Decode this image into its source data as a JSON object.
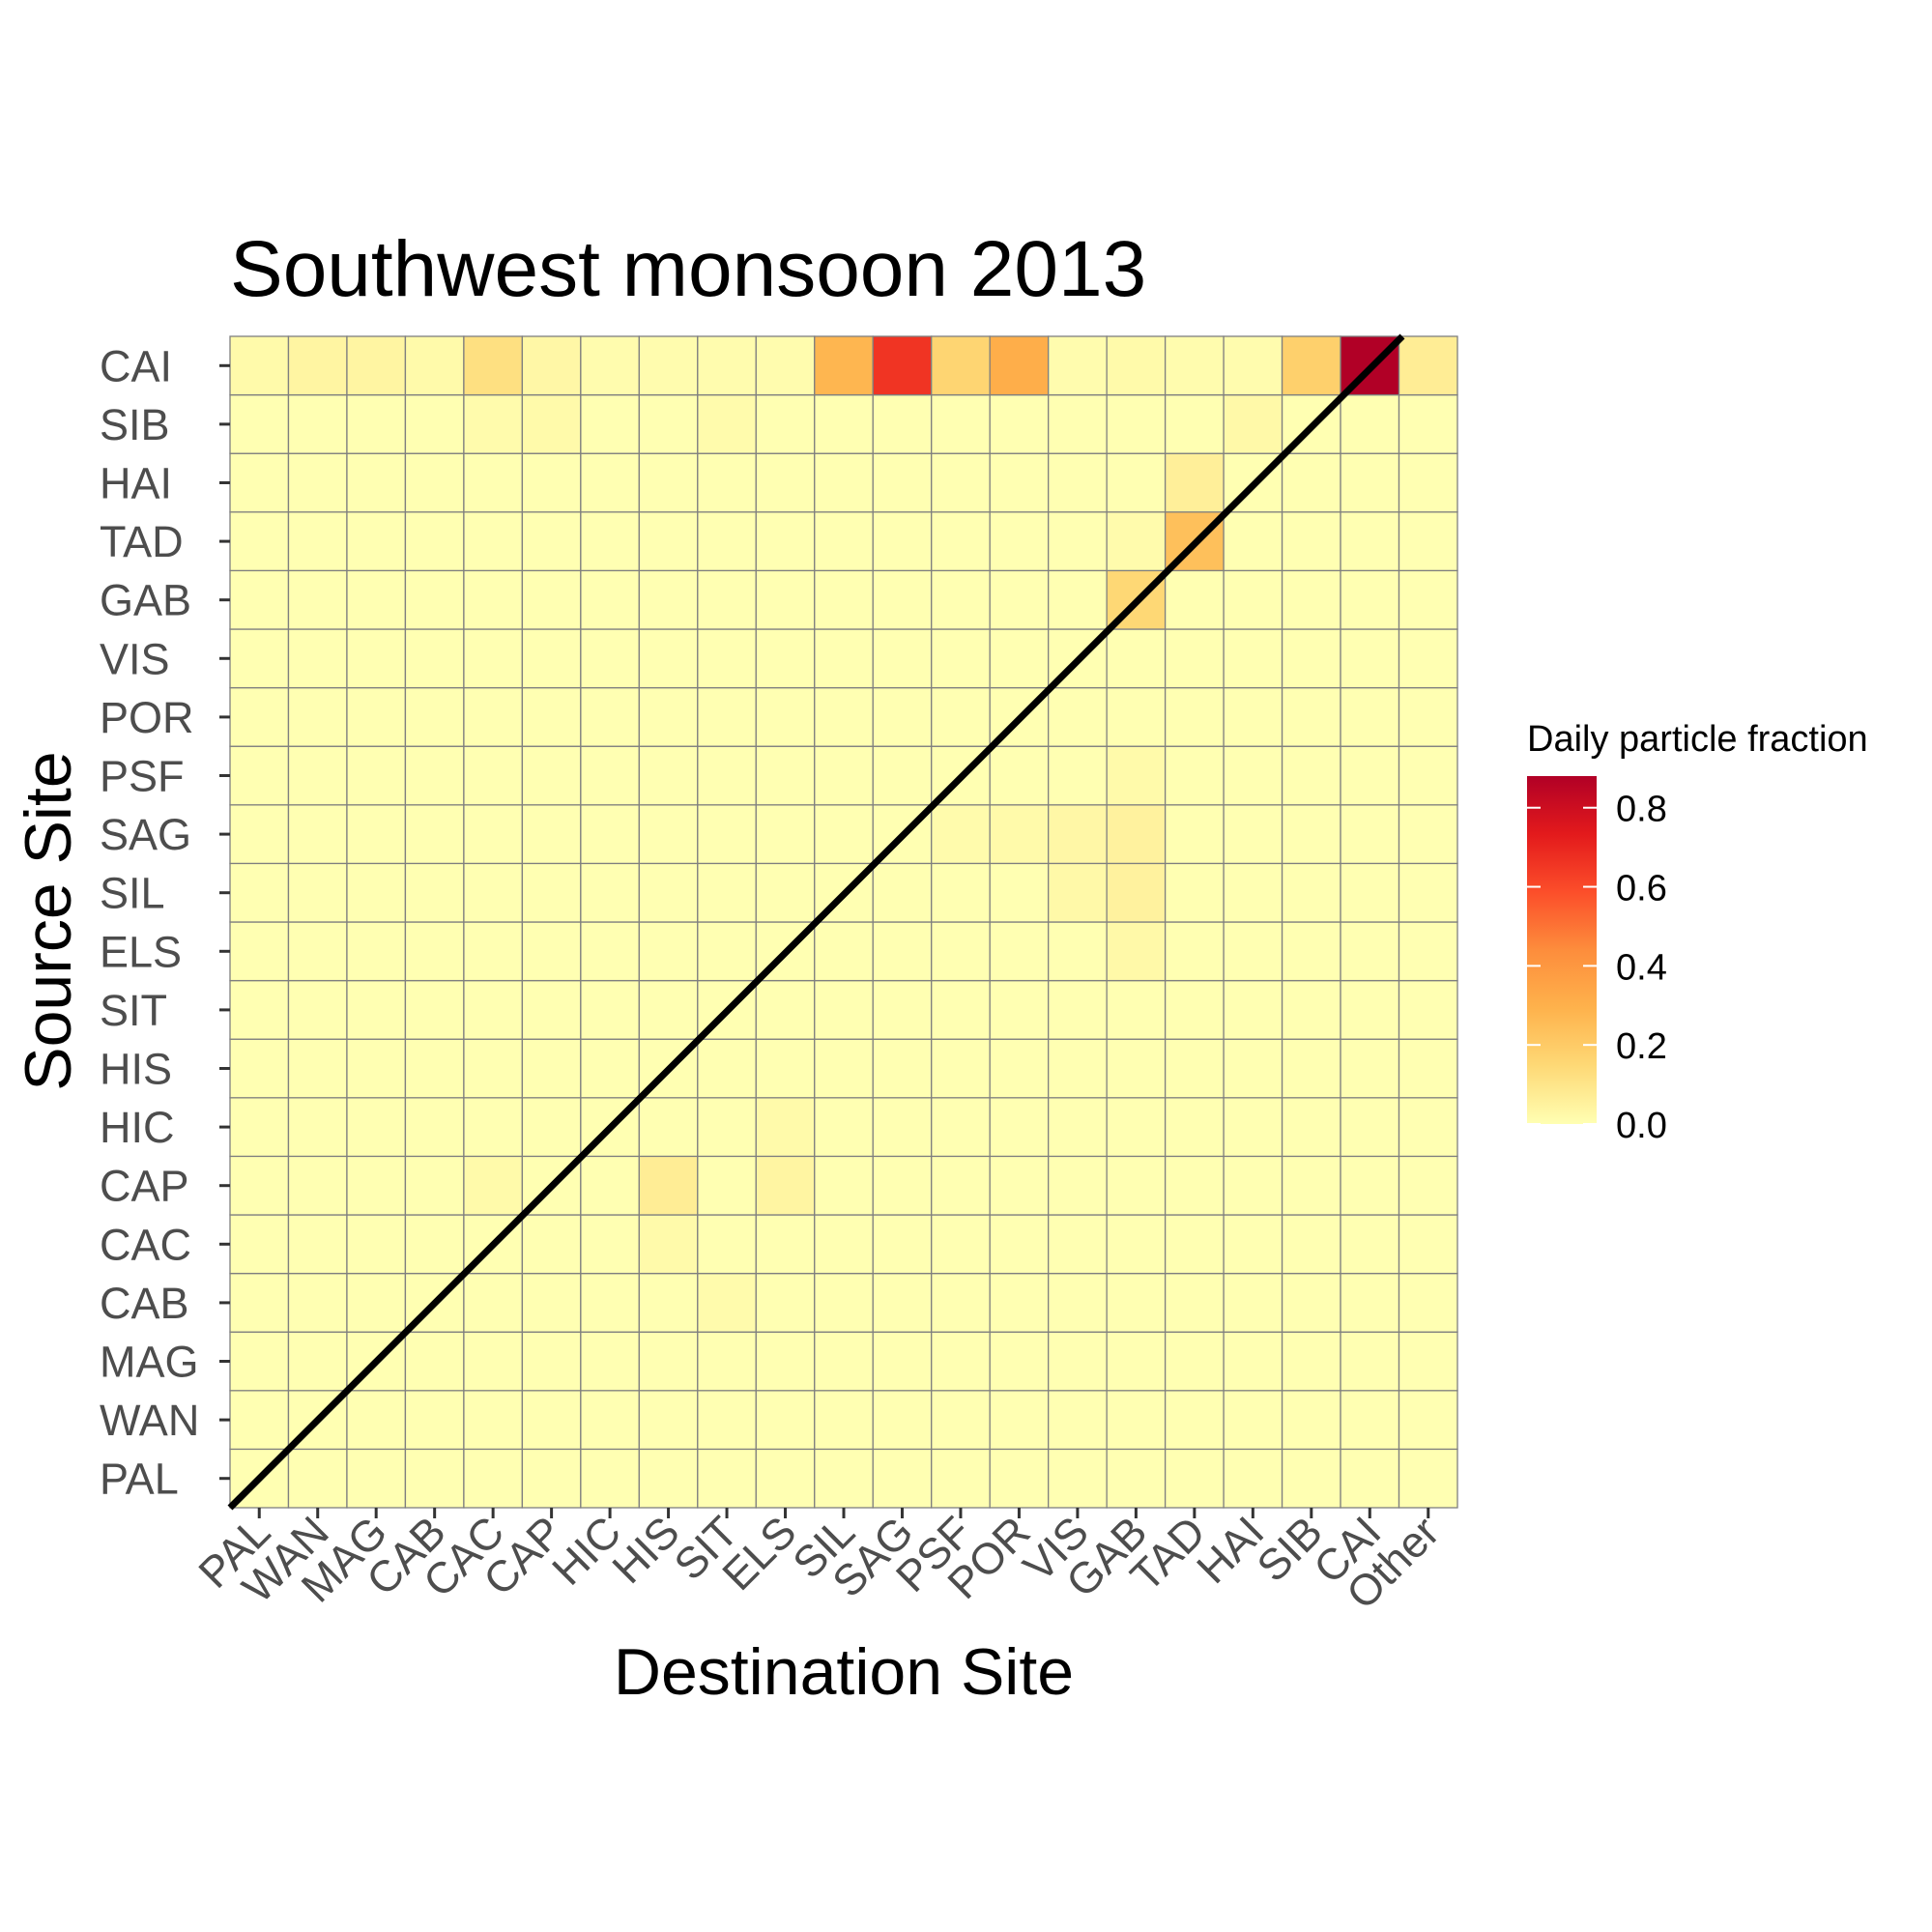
{
  "chart_data": {
    "type": "heatmap",
    "title": "Southwest monsoon 2013",
    "xlabel": "Destination Site",
    "ylabel": "Source Site",
    "x_categories": [
      "PAL",
      "WAN",
      "MAG",
      "CAB",
      "CAC",
      "CAP",
      "HIC",
      "HIS",
      "SIT",
      "ELS",
      "SIL",
      "SAG",
      "PSF",
      "POR",
      "VIS",
      "GAB",
      "TAD",
      "HAI",
      "SIB",
      "CAI",
      "Other"
    ],
    "y_categories": [
      "PAL",
      "WAN",
      "MAG",
      "CAB",
      "CAC",
      "CAP",
      "HIC",
      "HIS",
      "SIT",
      "ELS",
      "SIL",
      "SAG",
      "PSF",
      "POR",
      "VIS",
      "GAB",
      "TAD",
      "HAI",
      "SIB",
      "CAI"
    ],
    "legend": {
      "title": "Daily particle fraction",
      "ticks": [
        "0.0",
        "0.2",
        "0.4",
        "0.6",
        "0.8"
      ],
      "tick_values": [
        0,
        0.2,
        0.4,
        0.6,
        0.8
      ],
      "range": [
        0,
        0.88
      ],
      "placement": "right"
    },
    "color_scale": [
      "#ffffb2",
      "#fed976",
      "#feb24c",
      "#fd8d3c",
      "#fc4e2a",
      "#e31a1c",
      "#b10026"
    ],
    "diagonal_line": true,
    "grid": true,
    "cells": [
      {
        "source": "CAI",
        "dest": "PAL",
        "value": 0.02
      },
      {
        "source": "CAI",
        "dest": "WAN",
        "value": 0.04
      },
      {
        "source": "CAI",
        "dest": "MAG",
        "value": 0.04
      },
      {
        "source": "CAI",
        "dest": "CAB",
        "value": 0.02
      },
      {
        "source": "CAI",
        "dest": "CAC",
        "value": 0.12
      },
      {
        "source": "CAI",
        "dest": "CAP",
        "value": 0.03
      },
      {
        "source": "CAI",
        "dest": "HIC",
        "value": 0.01
      },
      {
        "source": "CAI",
        "dest": "HIS",
        "value": 0.01
      },
      {
        "source": "CAI",
        "dest": "SIT",
        "value": 0.01
      },
      {
        "source": "CAI",
        "dest": "ELS",
        "value": 0.01
      },
      {
        "source": "CAI",
        "dest": "SIL",
        "value": 0.28
      },
      {
        "source": "CAI",
        "dest": "SAG",
        "value": 0.66
      },
      {
        "source": "CAI",
        "dest": "PSF",
        "value": 0.16
      },
      {
        "source": "CAI",
        "dest": "POR",
        "value": 0.31
      },
      {
        "source": "CAI",
        "dest": "VIS",
        "value": 0.01
      },
      {
        "source": "CAI",
        "dest": "GAB",
        "value": 0.02
      },
      {
        "source": "CAI",
        "dest": "TAD",
        "value": 0.01
      },
      {
        "source": "CAI",
        "dest": "HAI",
        "value": 0.01
      },
      {
        "source": "CAI",
        "dest": "SIB",
        "value": 0.18
      },
      {
        "source": "CAI",
        "dest": "CAI",
        "value": 0.88
      },
      {
        "source": "CAI",
        "dest": "Other",
        "value": 0.07
      },
      {
        "source": "SIB",
        "dest": "CAC",
        "value": 0.015
      },
      {
        "source": "SIB",
        "dest": "CAP",
        "value": 0.02
      },
      {
        "source": "SIB",
        "dest": "SIT",
        "value": 0.015
      },
      {
        "source": "SIB",
        "dest": "HAI",
        "value": 0.025
      },
      {
        "source": "HAI",
        "dest": "TAD",
        "value": 0.06
      },
      {
        "source": "TAD",
        "dest": "GAB",
        "value": 0.015
      },
      {
        "source": "TAD",
        "dest": "TAD",
        "value": 0.24
      },
      {
        "source": "GAB",
        "dest": "GAB",
        "value": 0.15
      },
      {
        "source": "PSF",
        "dest": "GAB",
        "value": 0.02
      },
      {
        "source": "SAG",
        "dest": "PSF",
        "value": 0.015
      },
      {
        "source": "SAG",
        "dest": "POR",
        "value": 0.02
      },
      {
        "source": "SAG",
        "dest": "VIS",
        "value": 0.03
      },
      {
        "source": "SAG",
        "dest": "GAB",
        "value": 0.05
      },
      {
        "source": "SIL",
        "dest": "VIS",
        "value": 0.025
      },
      {
        "source": "SIL",
        "dest": "GAB",
        "value": 0.05
      },
      {
        "source": "ELS",
        "dest": "GAB",
        "value": 0.025
      },
      {
        "source": "HIC",
        "dest": "ELS",
        "value": 0.02
      },
      {
        "source": "CAP",
        "dest": "CAC",
        "value": 0.02
      },
      {
        "source": "CAP",
        "dest": "HIS",
        "value": 0.07
      },
      {
        "source": "CAP",
        "dest": "ELS",
        "value": 0.04
      },
      {
        "source": "CAC",
        "dest": "HIS",
        "value": 0.02
      },
      {
        "source": "CAB",
        "dest": "SIT",
        "value": 0.015
      }
    ]
  }
}
